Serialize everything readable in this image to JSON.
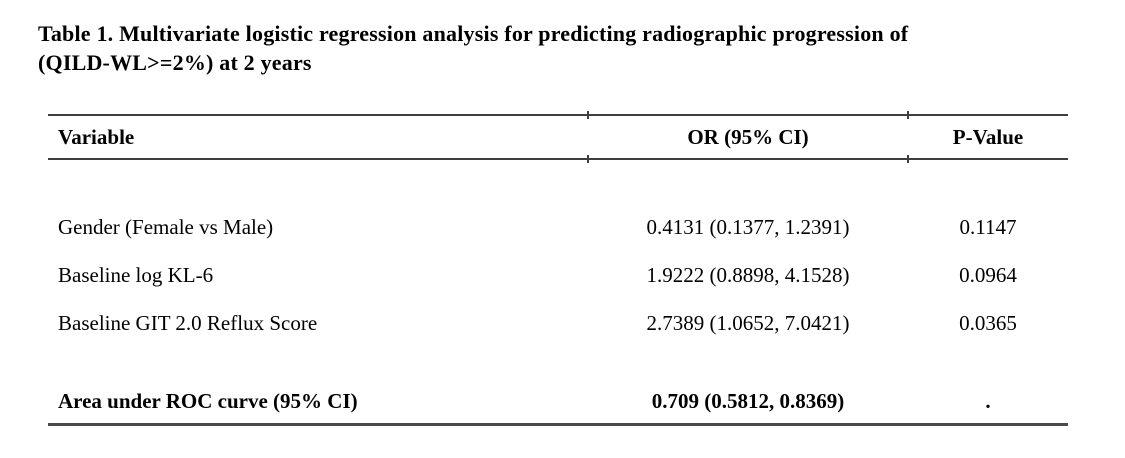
{
  "title": {
    "line1": "Table 1. Multivariate logistic regression analysis for predicting radiographic progression of",
    "line2": "(QILD-WL>=2%) at 2 years"
  },
  "table": {
    "columns": [
      "Variable",
      "OR (95% CI)",
      "P-Value"
    ],
    "rows": [
      {
        "variable": "Gender (Female vs Male)",
        "or_ci": "0.4131 (0.1377, 1.2391)",
        "p_value": "0.1147"
      },
      {
        "variable": "Baseline log KL-6",
        "or_ci": "1.9222 (0.8898, 4.1528)",
        "p_value": "0.0964"
      },
      {
        "variable": "Baseline GIT 2.0 Reflux Score",
        "or_ci": "2.7389 (1.0652, 7.0421)",
        "p_value": "0.0365"
      }
    ],
    "footer_row": {
      "variable": "Area under ROC curve (95% CI)",
      "or_ci": "0.709 (0.5812, 0.8369)",
      "p_value": "."
    }
  },
  "colors": {
    "rule": "#3f3f3f",
    "text": "#000000",
    "background": "#ffffff"
  }
}
